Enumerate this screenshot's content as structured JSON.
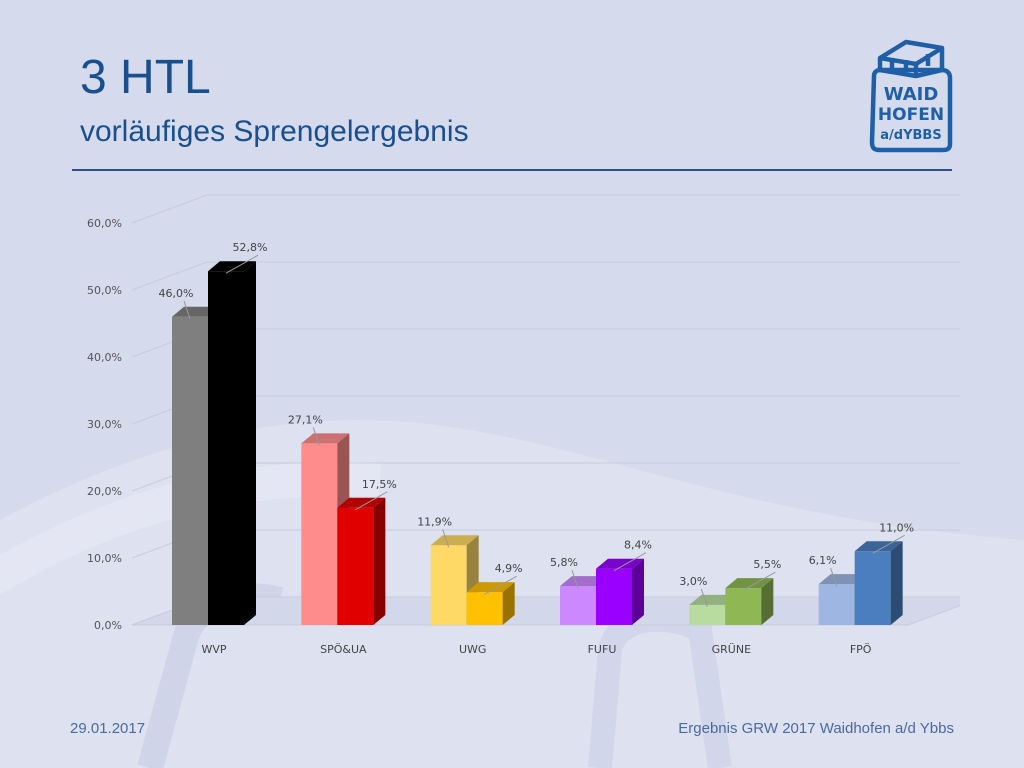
{
  "slide": {
    "title": "3 HTL",
    "subtitle": "vorläufiges Sprengelergebnis",
    "footer_date": "29.01.2017",
    "footer_text": "Ergebnis GRW 2017 Waidhofen a/d Ybbs"
  },
  "logo": {
    "lines": [
      "WAID",
      "HOFEN",
      "a/dYBBS"
    ],
    "color": "#1f5fa8"
  },
  "colors": {
    "background": "#d5daec",
    "title": "#1a4f8e",
    "rule": "#2f4f8a",
    "footer": "#4a6aa0"
  },
  "chart_data": {
    "type": "bar",
    "categories": [
      "WVP",
      "SPÖ&UA",
      "UWG",
      "FUFU",
      "GRÜNE",
      "FPÖ"
    ],
    "series": [
      {
        "values": [
          46.0,
          27.1,
          11.9,
          5.8,
          3.0,
          6.1
        ],
        "labels": [
          "46,0%",
          "27,1%",
          "11,9%",
          "5,8%",
          "3,0%",
          "6,1%"
        ],
        "colors": [
          "#7f7f7f",
          "#ff8c8c",
          "#ffd966",
          "#cc88ff",
          "#b8dca0",
          "#9eb6e2"
        ]
      },
      {
        "values": [
          52.8,
          17.5,
          4.9,
          8.4,
          5.5,
          11.0
        ],
        "labels": [
          "52,8%",
          "17,5%",
          "4,9%",
          "8,4%",
          "5,5%",
          "11,0%"
        ],
        "colors": [
          "#000000",
          "#e00000",
          "#ffc000",
          "#9900ff",
          "#8fb855",
          "#4a7ebf"
        ]
      }
    ],
    "yticks": [
      "0,0%",
      "10,0%",
      "20,0%",
      "30,0%",
      "40,0%",
      "50,0%",
      "60,0%"
    ],
    "ylim": [
      0,
      60
    ],
    "grid": true,
    "legend": "none"
  }
}
